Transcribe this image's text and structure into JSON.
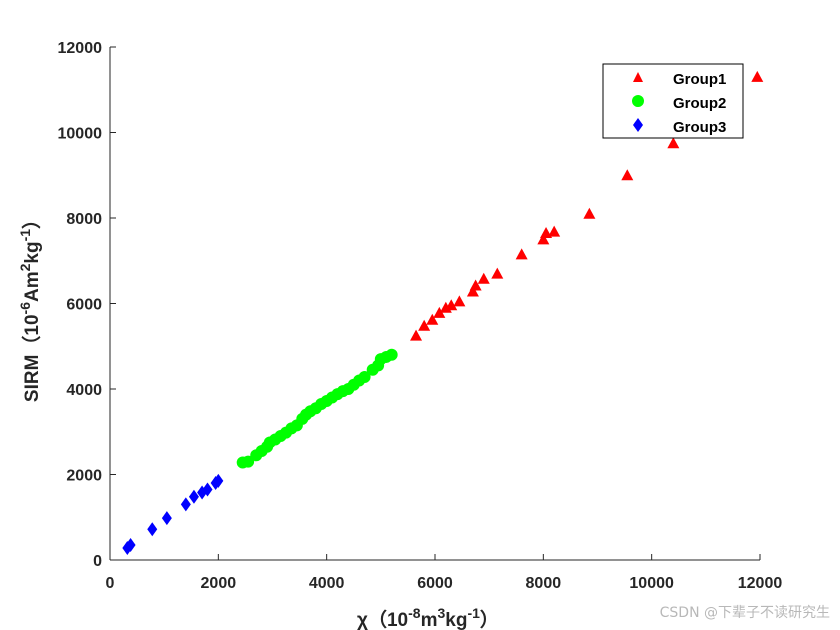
{
  "chart_data": {
    "type": "scatter",
    "title": "",
    "xlabel": "χ（10⁻⁸m³kg⁻¹）",
    "xlabel_parts": {
      "prefix": "χ（10",
      "exp1": "-8",
      "mid1": "m",
      "exp2": "3",
      "mid2": "kg",
      "exp3": "-1",
      "suffix": "）"
    },
    "ylabel": "SIRM（10⁻⁶Am²kg⁻¹）",
    "ylabel_parts": {
      "prefix": "SIRM（10",
      "exp1": "-6",
      "mid1": "Am",
      "exp2": "2",
      "mid2": "kg",
      "exp3": "-1",
      "suffix": "）"
    },
    "xlim": [
      0,
      12000
    ],
    "ylim": [
      0,
      12000
    ],
    "xticks": [
      0,
      2000,
      4000,
      6000,
      8000,
      10000,
      12000
    ],
    "yticks": [
      0,
      2000,
      4000,
      6000,
      8000,
      10000,
      12000
    ],
    "grid": false,
    "legend_position": "top-right",
    "series": [
      {
        "name": "Group1",
        "marker": "triangle",
        "color": "#ff0000",
        "points": [
          [
            5650,
            5250
          ],
          [
            5800,
            5480
          ],
          [
            5950,
            5620
          ],
          [
            6080,
            5780
          ],
          [
            6200,
            5900
          ],
          [
            6300,
            5960
          ],
          [
            6450,
            6050
          ],
          [
            6700,
            6280
          ],
          [
            6750,
            6420
          ],
          [
            6900,
            6580
          ],
          [
            7150,
            6700
          ],
          [
            7600,
            7150
          ],
          [
            8000,
            7500
          ],
          [
            8050,
            7650
          ],
          [
            8200,
            7680
          ],
          [
            8850,
            8100
          ],
          [
            9550,
            9000
          ],
          [
            10400,
            9750
          ],
          [
            11950,
            11300
          ]
        ]
      },
      {
        "name": "Group2",
        "marker": "circle",
        "color": "#00ff00",
        "points": [
          [
            2450,
            2280
          ],
          [
            2550,
            2300
          ],
          [
            2700,
            2450
          ],
          [
            2800,
            2550
          ],
          [
            2900,
            2650
          ],
          [
            2950,
            2750
          ],
          [
            3050,
            2820
          ],
          [
            3150,
            2900
          ],
          [
            3250,
            2980
          ],
          [
            3350,
            3080
          ],
          [
            3450,
            3150
          ],
          [
            3550,
            3300
          ],
          [
            3620,
            3400
          ],
          [
            3700,
            3480
          ],
          [
            3800,
            3550
          ],
          [
            3900,
            3650
          ],
          [
            4000,
            3720
          ],
          [
            4100,
            3800
          ],
          [
            4200,
            3880
          ],
          [
            4300,
            3950
          ],
          [
            4400,
            4000
          ],
          [
            4500,
            4100
          ],
          [
            4600,
            4200
          ],
          [
            4700,
            4280
          ],
          [
            4850,
            4450
          ],
          [
            4950,
            4550
          ],
          [
            5000,
            4700
          ],
          [
            5100,
            4750
          ],
          [
            5200,
            4800
          ]
        ]
      },
      {
        "name": "Group3",
        "marker": "diamond",
        "color": "#0000ff",
        "points": [
          [
            320,
            280
          ],
          [
            380,
            350
          ],
          [
            780,
            720
          ],
          [
            1050,
            980
          ],
          [
            1400,
            1300
          ],
          [
            1550,
            1480
          ],
          [
            1700,
            1580
          ],
          [
            1800,
            1650
          ],
          [
            1950,
            1800
          ],
          [
            2000,
            1850
          ]
        ]
      }
    ]
  },
  "watermark": "CSDN @下辈子不读研究生"
}
